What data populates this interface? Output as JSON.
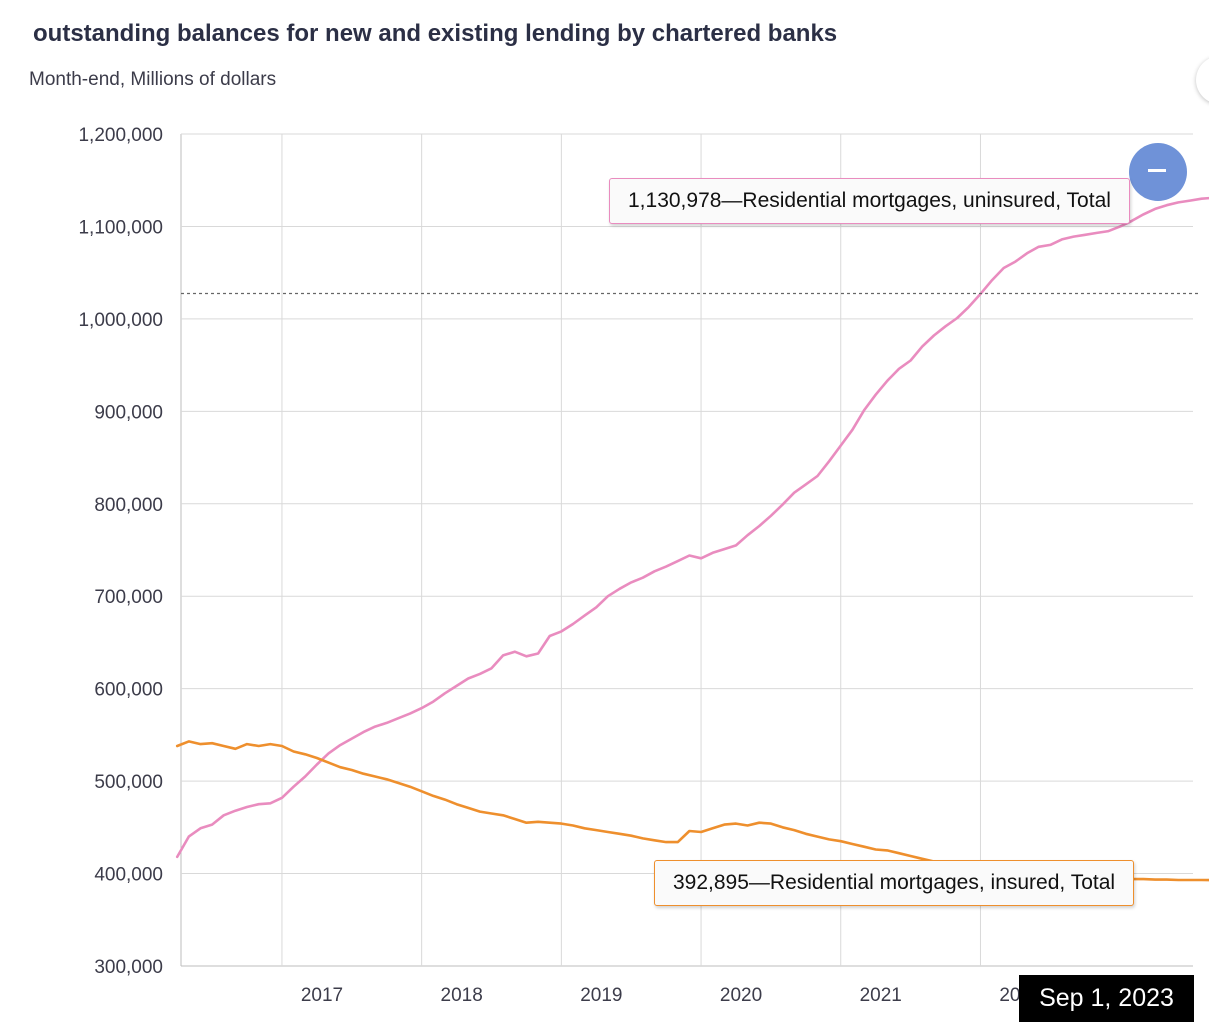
{
  "header": {
    "title": "outstanding balances for new and existing lending by chartered banks",
    "subtitle": "Month-end, Millions of dollars"
  },
  "tooltips": {
    "uninsured": "1,130,978—Residential mortgages, uninsured, Total",
    "insured": "392,895—Residential mortgages, insured, Total"
  },
  "crosshair": {
    "date_label": "Sep 1, 2023",
    "y_value": 1027500
  },
  "colors": {
    "uninsured": "#e98cbf",
    "insured": "#ee8f2d",
    "grid": "#d9d9d9",
    "button": "#6f92d8"
  },
  "icons": {
    "collapse": "minus-icon"
  },
  "chart_data": {
    "type": "line",
    "title": "outstanding balances for new and existing lending by chartered banks",
    "subtitle": "Month-end, Millions of dollars",
    "xlabel": "",
    "ylabel": "",
    "x_ticks": [
      "2017",
      "2018",
      "2019",
      "2020",
      "2021",
      "2022"
    ],
    "y_ticks": [
      "300,000",
      "400,000",
      "500,000",
      "600,000",
      "700,000",
      "800,000",
      "900,000",
      "1,000,000",
      "1,100,000",
      "1,200,000"
    ],
    "ylim": [
      300000,
      1200000
    ],
    "x_range": [
      "2016-04",
      "2023-09"
    ],
    "grid": true,
    "legend": "none",
    "x": [
      "2016-04",
      "2016-05",
      "2016-06",
      "2016-07",
      "2016-08",
      "2016-09",
      "2016-10",
      "2016-11",
      "2016-12",
      "2017-01",
      "2017-02",
      "2017-03",
      "2017-04",
      "2017-05",
      "2017-06",
      "2017-07",
      "2017-08",
      "2017-09",
      "2017-10",
      "2017-11",
      "2017-12",
      "2018-01",
      "2018-02",
      "2018-03",
      "2018-04",
      "2018-05",
      "2018-06",
      "2018-07",
      "2018-08",
      "2018-09",
      "2018-10",
      "2018-11",
      "2018-12",
      "2019-01",
      "2019-02",
      "2019-03",
      "2019-04",
      "2019-05",
      "2019-06",
      "2019-07",
      "2019-08",
      "2019-09",
      "2019-10",
      "2019-11",
      "2019-12",
      "2020-01",
      "2020-02",
      "2020-03",
      "2020-04",
      "2020-05",
      "2020-06",
      "2020-07",
      "2020-08",
      "2020-09",
      "2020-10",
      "2020-11",
      "2020-12",
      "2021-01",
      "2021-02",
      "2021-03",
      "2021-04",
      "2021-05",
      "2021-06",
      "2021-07",
      "2021-08",
      "2021-09",
      "2021-10",
      "2021-11",
      "2021-12",
      "2022-01",
      "2022-02",
      "2022-03",
      "2022-04",
      "2022-05",
      "2022-06",
      "2022-07",
      "2022-08",
      "2022-09",
      "2022-10",
      "2022-11",
      "2022-12",
      "2023-01",
      "2023-02",
      "2023-03",
      "2023-04",
      "2023-05",
      "2023-06",
      "2023-07",
      "2023-08",
      "2023-09"
    ],
    "series": [
      {
        "name": "Residential mortgages, uninsured, Total",
        "color": "#e98cbf",
        "values": [
          418000,
          440000,
          449000,
          453000,
          463000,
          468000,
          472000,
          475000,
          476000,
          482000,
          494000,
          505000,
          518000,
          530000,
          539000,
          546000,
          553000,
          559000,
          563000,
          568000,
          573000,
          579000,
          586000,
          595000,
          603000,
          611000,
          616000,
          622000,
          636000,
          640000,
          635000,
          638000,
          657000,
          662000,
          670000,
          679000,
          688000,
          700000,
          708000,
          715000,
          720000,
          727000,
          732000,
          738000,
          744000,
          741000,
          747000,
          751000,
          755000,
          766000,
          776000,
          787000,
          799000,
          812000,
          821000,
          830000,
          846000,
          863000,
          880000,
          901000,
          918000,
          933000,
          946000,
          955000,
          970000,
          982000,
          992000,
          1001000,
          1013000,
          1027000,
          1042000,
          1055000,
          1062000,
          1071000,
          1078000,
          1080000,
          1086000,
          1089000,
          1091000,
          1093000,
          1095000,
          1100000,
          1106000,
          1113000,
          1119000,
          1123000,
          1126000,
          1128000,
          1130000,
          1130978
        ]
      },
      {
        "name": "Residential mortgages, insured, Total",
        "color": "#ee8f2d",
        "values": [
          538000,
          543000,
          540000,
          541000,
          538000,
          535000,
          540000,
          538000,
          540000,
          538000,
          532000,
          529000,
          525000,
          520000,
          515000,
          512000,
          508000,
          505000,
          502000,
          498000,
          494000,
          489000,
          484000,
          480000,
          475000,
          471000,
          467000,
          465000,
          463000,
          459000,
          455000,
          456000,
          455000,
          454000,
          452000,
          449000,
          447000,
          445000,
          443000,
          441000,
          438000,
          436000,
          434000,
          434000,
          446000,
          445000,
          449000,
          453000,
          454000,
          452000,
          455000,
          454000,
          450000,
          447000,
          443000,
          440000,
          437000,
          435000,
          432000,
          429000,
          426000,
          425000,
          422000,
          419000,
          416000,
          413000,
          411000,
          408000,
          406000,
          404000,
          402000,
          401000,
          400000,
          399000,
          398000,
          397000,
          397000,
          396000,
          396000,
          395000,
          395000,
          394000,
          394000,
          394000,
          393500,
          393500,
          393000,
          393000,
          393000,
          392895
        ]
      }
    ]
  }
}
